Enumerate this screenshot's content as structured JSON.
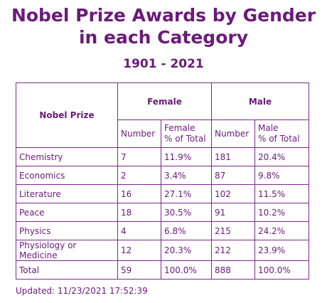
{
  "title_line1": "Nobel Prize Awards by Gender",
  "title_line2": "in each Category",
  "subtitle": "1901 - 2021",
  "headers": {
    "category": "Nobel Prize",
    "female": "Female",
    "male": "Male",
    "number": "Number",
    "female_pct_line1": "Female",
    "female_pct_line2": "% of Total",
    "male_pct_line1": "Male",
    "male_pct_line2": "% of Total"
  },
  "updated": "Updated: 11/23/2021 17:52:39",
  "chart_data": {
    "type": "table",
    "title": "Nobel Prize Awards by Gender in each Category",
    "subtitle": "1901 - 2021",
    "columns": [
      "Nobel Prize",
      "Female Number",
      "Female % of Total",
      "Male Number",
      "Male % of Total"
    ],
    "rows": [
      {
        "category": "Chemistry",
        "female_number": "7",
        "female_pct": "11.9%",
        "male_number": "181",
        "male_pct": "20.4%"
      },
      {
        "category": "Economics",
        "female_number": "2",
        "female_pct": "3.4%",
        "male_number": "87",
        "male_pct": "9.8%"
      },
      {
        "category": "Literature",
        "female_number": "16",
        "female_pct": "27.1%",
        "male_number": "102",
        "male_pct": "11.5%"
      },
      {
        "category": "Peace",
        "female_number": "18",
        "female_pct": "30.5%",
        "male_number": "91",
        "male_pct": "10.2%"
      },
      {
        "category": "Physics",
        "female_number": "4",
        "female_pct": "6.8%",
        "male_number": "215",
        "male_pct": "24.2%"
      },
      {
        "category": "Physiology or Medicine",
        "female_number": "12",
        "female_pct": "20.3%",
        "male_number": "212",
        "male_pct": "23.9%"
      },
      {
        "category": "Total",
        "female_number": "59",
        "female_pct": "100.0%",
        "male_number": "888",
        "male_pct": "100.0%"
      }
    ]
  }
}
